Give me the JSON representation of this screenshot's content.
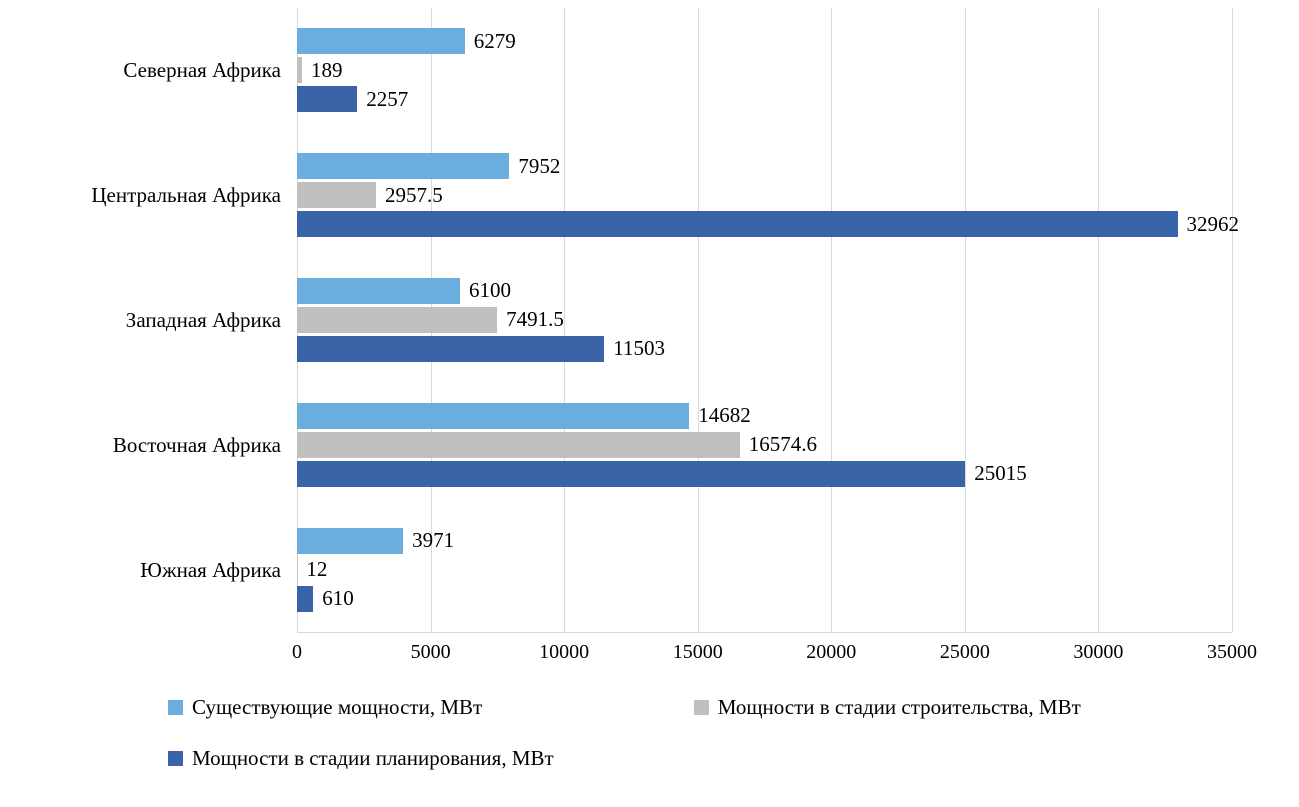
{
  "chart_data": {
    "type": "bar",
    "orientation": "horizontal",
    "title": "",
    "categories": [
      "Северная Африка",
      "Центральная Африка",
      "Западная Африка",
      "Восточная Африка",
      "Южная Африка"
    ],
    "series": [
      {
        "name": "Существующие мощности, МВт",
        "color": "#6cadDF",
        "values": [
          6279,
          7952,
          6100,
          14682,
          3971
        ],
        "labels": [
          "6279",
          "7952",
          "6100",
          "14682",
          "3971"
        ]
      },
      {
        "name": "Мощности в стадии строительства, МВт",
        "color": "#bfbfbf",
        "values": [
          189,
          2957.5,
          7491.5,
          16574.6,
          12
        ],
        "labels": [
          "189",
          "2957.5",
          "7491.5",
          "16574.6",
          "12"
        ]
      },
      {
        "name": "Мощности в стадии планирования, МВт",
        "color": "#3b63a8",
        "values": [
          2257,
          32962,
          11503,
          25015,
          610
        ],
        "labels": [
          "2257",
          "32962",
          "11503",
          "25015",
          "610"
        ]
      }
    ],
    "xlim": [
      0,
      35000
    ],
    "x_ticks": [
      0,
      5000,
      10000,
      15000,
      20000,
      25000,
      30000,
      35000
    ],
    "grid": true,
    "gridline_color": "#d9d9d9",
    "legend_position": "bottom"
  }
}
